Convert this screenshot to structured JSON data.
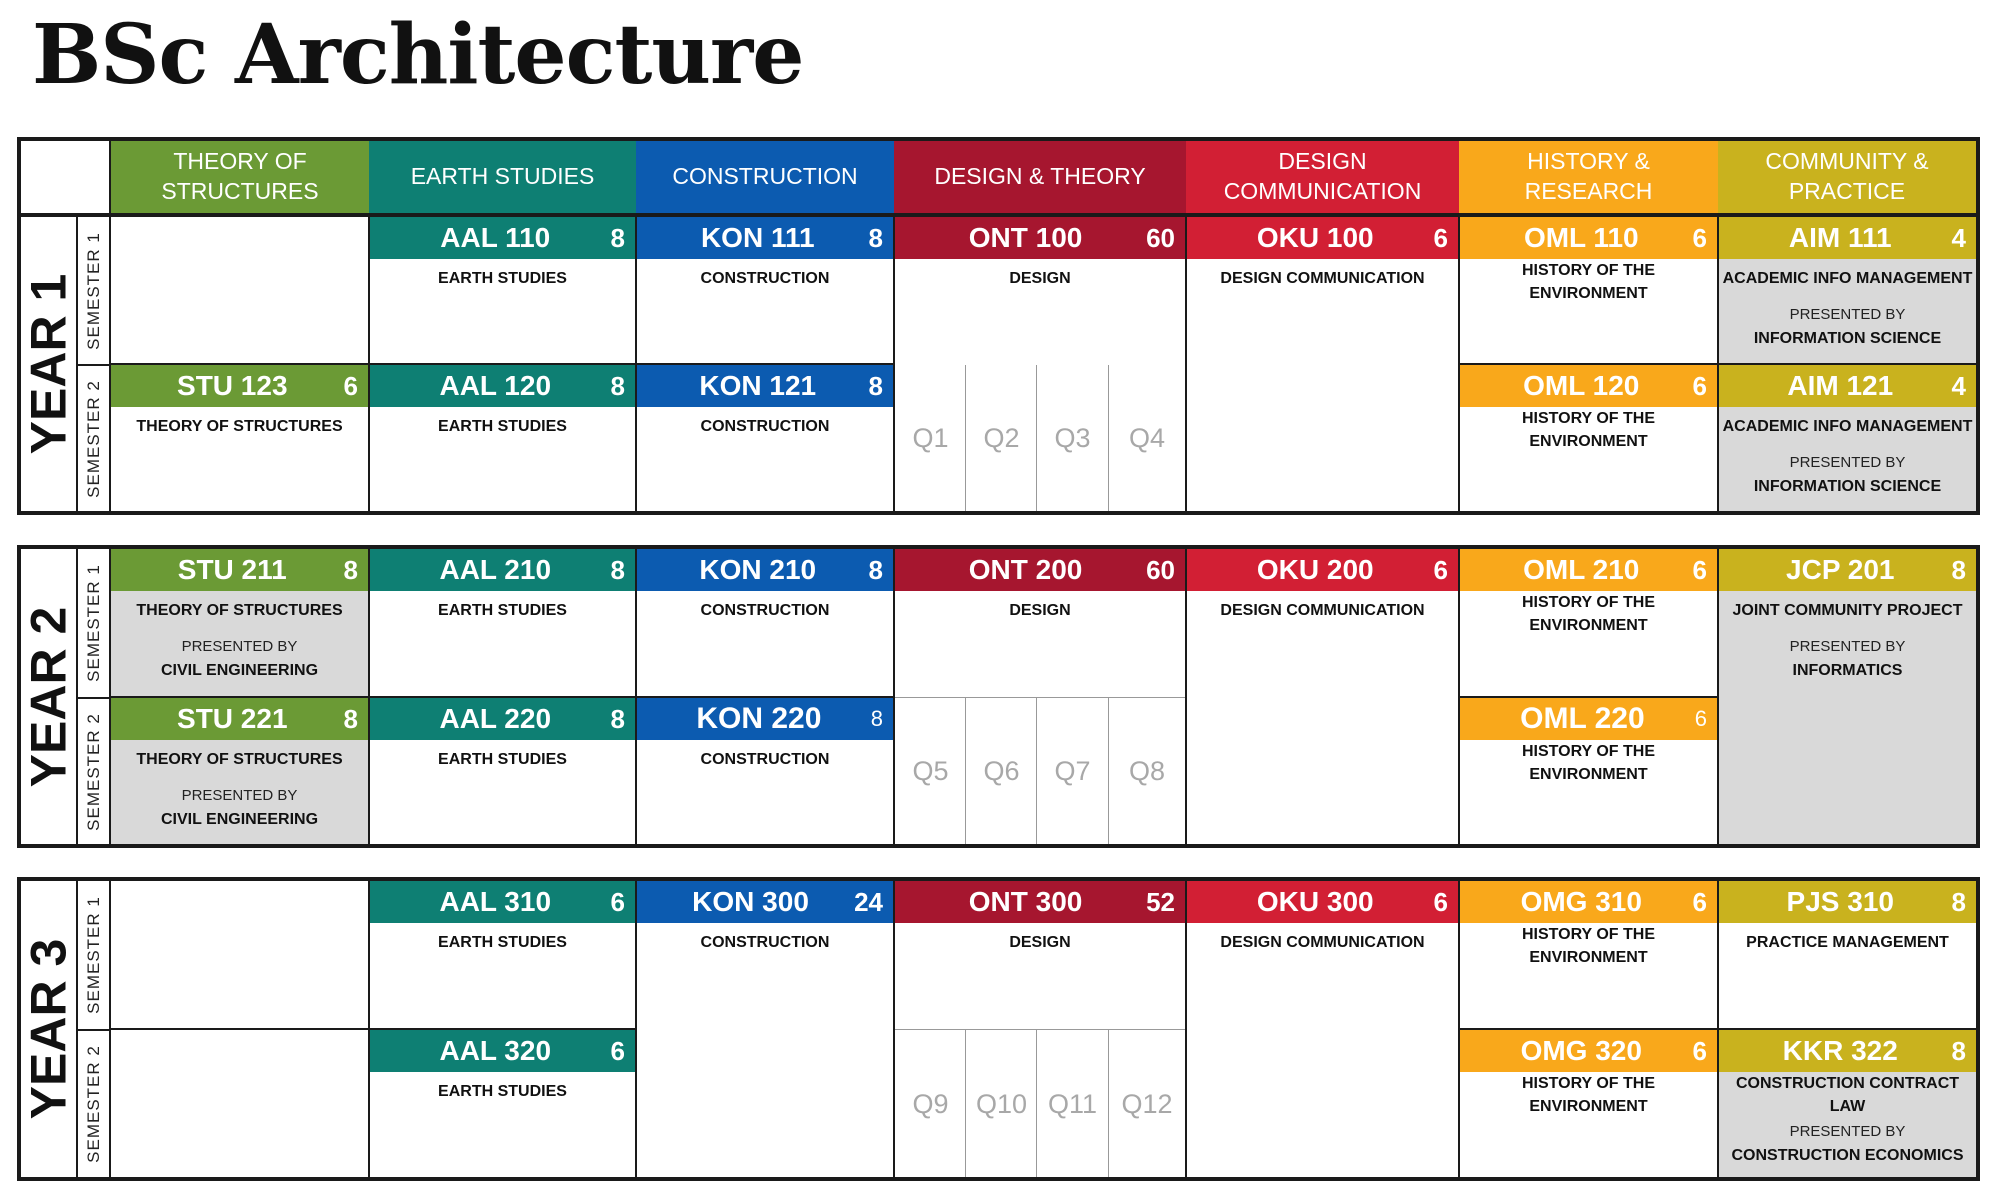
{
  "title": "BSc Architecture",
  "colors": {
    "theory_of_structures": "#6b9a35",
    "earth_studies": "#0e7f73",
    "construction": "#0c5bb0",
    "design_theory": "#a6162f",
    "design_communication": "#d21f34",
    "history_research": "#f9a81b",
    "community_practice": "#c9b21e",
    "presented_by_background": "#d9d9d9"
  },
  "headers": [
    {
      "line1": "THEORY OF",
      "line2": "STRUCTURES"
    },
    {
      "line1": "EARTH STUDIES",
      "line2": ""
    },
    {
      "line1": "CONSTRUCTION",
      "line2": ""
    },
    {
      "line1": "DESIGN & THEORY",
      "line2": ""
    },
    {
      "line1": "DESIGN",
      "line2": "COMMUNICATION"
    },
    {
      "line1": "HISTORY &",
      "line2": "RESEARCH"
    },
    {
      "line1": "COMMUNITY &",
      "line2": "PRACTICE"
    }
  ],
  "semester_labels": [
    "SEMESTER 1",
    "SEMESTER 2"
  ],
  "years": [
    {
      "label": "YEAR 1",
      "modules": {
        "aal110": {
          "code": "AAL 110",
          "credits": "8",
          "name": "EARTH STUDIES"
        },
        "kon111": {
          "code": "KON 111",
          "credits": "8",
          "name": "CONSTRUCTION"
        },
        "ont100": {
          "code": "ONT 100",
          "credits": "60",
          "name": "DESIGN"
        },
        "oku100": {
          "code": "OKU 100",
          "credits": "6",
          "name": "DESIGN COMMUNICATION"
        },
        "oml110": {
          "code": "OML 110",
          "credits": "6",
          "name1": "HISTORY OF THE",
          "name2": "ENVIRONMENT"
        },
        "aim111": {
          "code": "AIM 111",
          "credits": "4",
          "name": "ACADEMIC INFO MANAGEMENT",
          "presented": "PRESENTED BY",
          "by": "INFORMATION SCIENCE"
        },
        "stu123": {
          "code": "STU 123",
          "credits": "6",
          "name": "THEORY OF STRUCTURES"
        },
        "aal120": {
          "code": "AAL 120",
          "credits": "8",
          "name": "EARTH STUDIES"
        },
        "kon121": {
          "code": "KON 121",
          "credits": "8",
          "name": "CONSTRUCTION"
        },
        "oml120": {
          "code": "OML 120",
          "credits": "6",
          "name1": "HISTORY OF THE",
          "name2": "ENVIRONMENT"
        },
        "aim121": {
          "code": "AIM 121",
          "credits": "4",
          "name": "ACADEMIC INFO MANAGEMENT",
          "presented": "PRESENTED BY",
          "by": "INFORMATION SCIENCE"
        }
      },
      "quarters": [
        "Q1",
        "Q2",
        "Q3",
        "Q4"
      ]
    },
    {
      "label": "YEAR 2",
      "modules": {
        "stu211": {
          "code": "STU 211",
          "credits": "8",
          "name": "THEORY OF STRUCTURES",
          "presented": "PRESENTED BY",
          "by": "CIVIL ENGINEERING"
        },
        "aal210": {
          "code": "AAL 210",
          "credits": "8",
          "name": "EARTH STUDIES"
        },
        "kon210": {
          "code": "KON 210",
          "credits": "8",
          "name": "CONSTRUCTION"
        },
        "ont200": {
          "code": "ONT 200",
          "credits": "60",
          "name": "DESIGN"
        },
        "oku200": {
          "code": "OKU 200",
          "credits": "6",
          "name": "DESIGN COMMUNICATION"
        },
        "oml210": {
          "code": "OML 210",
          "credits": "6",
          "name1": "HISTORY OF THE",
          "name2": "ENVIRONMENT"
        },
        "jcp201": {
          "code": "JCP 201",
          "credits": "8",
          "name": "JOINT COMMUNITY PROJECT",
          "presented": "PRESENTED BY",
          "by": "INFORMATICS"
        },
        "stu221": {
          "code": "STU 221",
          "credits": "8",
          "name": "THEORY OF STRUCTURES",
          "presented": "PRESENTED BY",
          "by": "CIVIL ENGINEERING"
        },
        "aal220": {
          "code": "AAL 220",
          "credits": "8",
          "name": "EARTH STUDIES"
        },
        "kon220": {
          "code": "KON 220",
          "credits": "8",
          "name": "CONSTRUCTION"
        },
        "oml220": {
          "code": "OML 220",
          "credits": "6",
          "name1": "HISTORY OF THE",
          "name2": "ENVIRONMENT"
        }
      },
      "quarters": [
        "Q5",
        "Q6",
        "Q7",
        "Q8"
      ]
    },
    {
      "label": "YEAR 3",
      "modules": {
        "aal310": {
          "code": "AAL 310",
          "credits": "6",
          "name": "EARTH STUDIES"
        },
        "kon300": {
          "code": "KON 300",
          "credits": "24",
          "name": "CONSTRUCTION"
        },
        "ont300": {
          "code": "ONT 300",
          "credits": "52",
          "name": "DESIGN"
        },
        "oku300": {
          "code": "OKU 300",
          "credits": "6",
          "name": "DESIGN COMMUNICATION"
        },
        "omg310": {
          "code": "OMG 310",
          "credits": "6",
          "name1": "HISTORY OF THE",
          "name2": "ENVIRONMENT"
        },
        "pjs310": {
          "code": "PJS 310",
          "credits": "8",
          "name": "PRACTICE MANAGEMENT"
        },
        "aal320": {
          "code": "AAL 320",
          "credits": "6",
          "name": "EARTH STUDIES"
        },
        "omg320": {
          "code": "OMG 320",
          "credits": "6",
          "name1": "HISTORY OF THE",
          "name2": "ENVIRONMENT"
        },
        "kkr322": {
          "code": "KKR 322",
          "credits": "8",
          "name1": "CONSTRUCTION CONTRACT",
          "name2": "LAW",
          "presented": "PRESENTED BY",
          "by": "CONSTRUCTION ECONOMICS"
        }
      },
      "quarters": [
        "Q9",
        "Q10",
        "Q11",
        "Q12"
      ]
    }
  ]
}
